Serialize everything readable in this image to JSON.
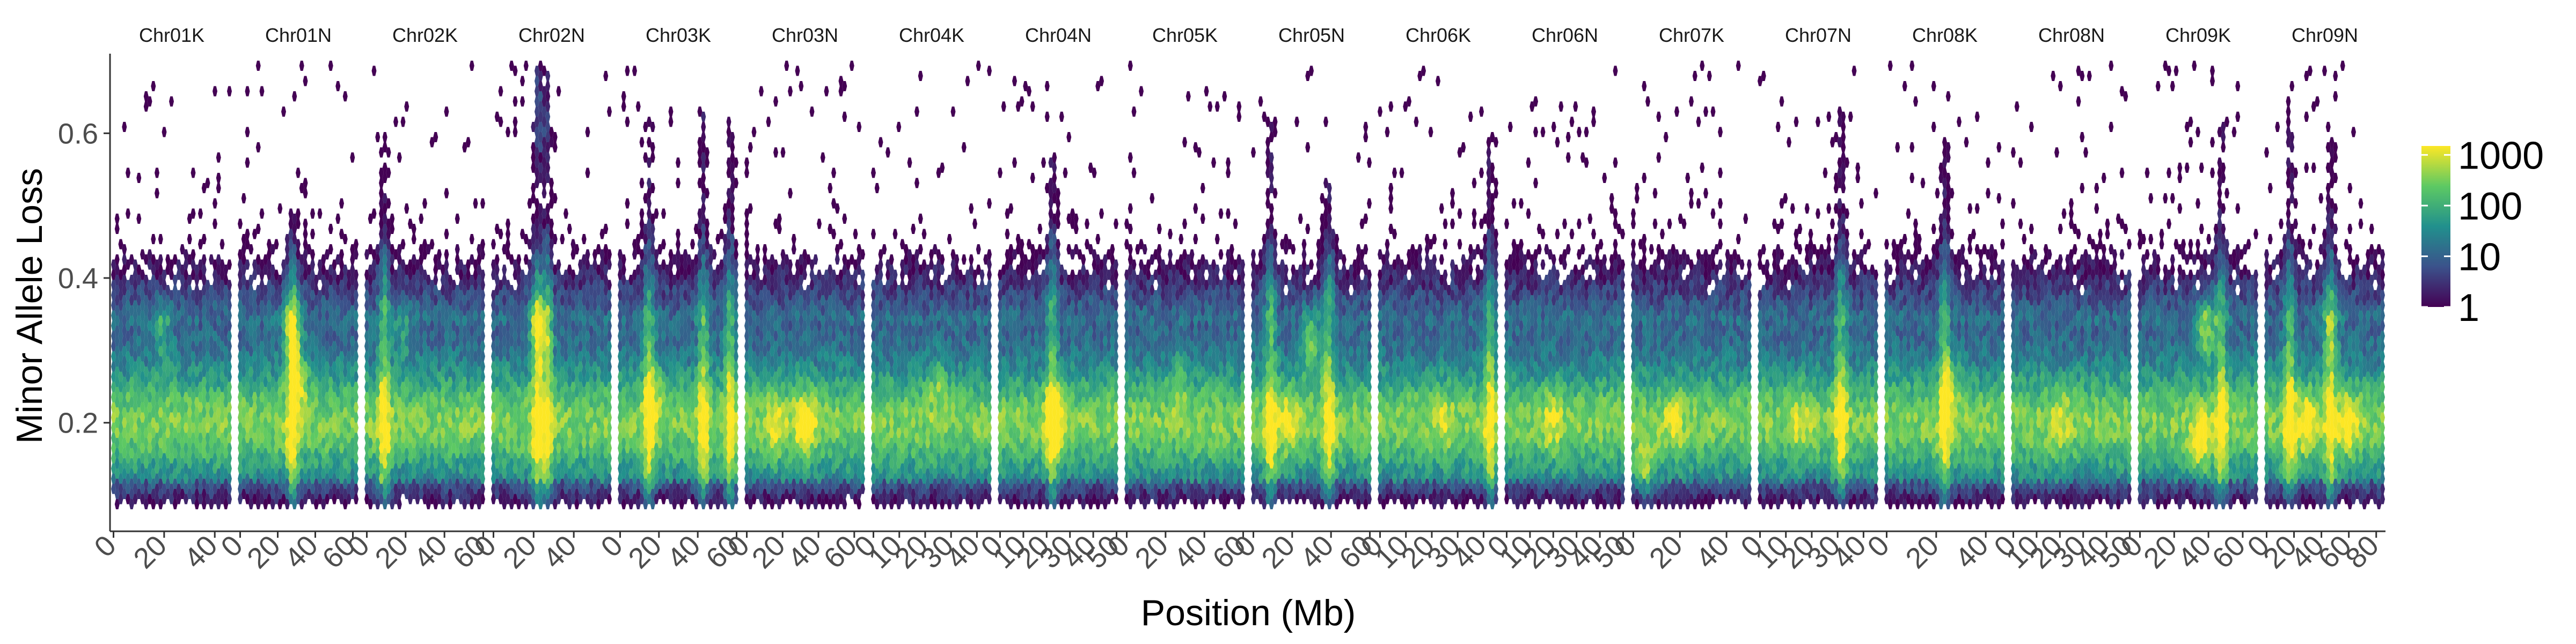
{
  "chart_data": {
    "type": "heatmap",
    "subtype": "faceted hexbin density",
    "title": "",
    "xlabel": "Position (Mb)",
    "ylabel": "Minor Allele Loss",
    "ylim": [
      0.05,
      0.71
    ],
    "y_ticks": [
      0.2,
      0.4,
      0.6
    ],
    "grid": false,
    "color_scale": {
      "name": "viridis",
      "scale": "log10",
      "min": 1,
      "max": 1500,
      "ticks": [
        "1",
        "10",
        "100",
        "1000"
      ],
      "stops": [
        "#440154",
        "#3b528b",
        "#21908d",
        "#5dc963",
        "#fde725"
      ]
    },
    "legend_position": "right",
    "facets": [
      {
        "name": "Chr01K",
        "xmax": 46,
        "x_ticks": [
          0,
          20,
          40
        ],
        "hot": [
          [
            0.42,
            0.33,
            1.4
          ]
        ],
        "tall": []
      },
      {
        "name": "Chr01N",
        "xmax": 62,
        "x_ticks": [
          0,
          20,
          40,
          60
        ],
        "hot": [
          [
            0.45,
            0.33,
            2.4
          ],
          [
            0.5,
            0.26,
            1.8
          ]
        ],
        "tall": [
          [
            0.45,
            0.5
          ]
        ]
      },
      {
        "name": "Chr02K",
        "xmax": 60,
        "x_ticks": [
          0,
          20,
          40,
          60
        ],
        "hot": [
          [
            0.3,
            0.33,
            1.2
          ]
        ],
        "tall": [
          [
            0.15,
            0.6
          ]
        ]
      },
      {
        "name": "Chr02N",
        "xmax": 58,
        "x_ticks": [
          0,
          20,
          40
        ],
        "hot": [
          [
            0.4,
            0.33,
            2.2
          ],
          [
            0.42,
            0.6,
            0.9
          ],
          [
            0.38,
            0.66,
            0.8
          ]
        ],
        "tall": [
          [
            0.42,
            0.7
          ],
          [
            0.38,
            0.69
          ],
          [
            0.46,
            0.68
          ]
        ]
      },
      {
        "name": "Chr03K",
        "xmax": 60,
        "x_ticks": [
          0,
          20,
          40,
          60
        ],
        "hot": [
          [
            0.3,
            0.25,
            1.0
          ]
        ],
        "tall": [
          [
            0.25,
            0.62
          ],
          [
            0.72,
            0.63
          ],
          [
            0.95,
            0.62
          ]
        ]
      },
      {
        "name": "Chr03N",
        "xmax": 65,
        "x_ticks": [
          0,
          20,
          40,
          60
        ],
        "hot": [
          [
            0.5,
            0.2,
            1.8
          ],
          [
            0.25,
            0.2,
            1.2
          ]
        ],
        "tall": []
      },
      {
        "name": "Chr04K",
        "xmax": 45,
        "x_ticks": [
          0,
          10,
          20,
          30,
          40
        ],
        "hot": [
          [
            0.55,
            0.26,
            1.0
          ]
        ],
        "tall": []
      },
      {
        "name": "Chr04N",
        "xmax": 50,
        "x_ticks": [
          0,
          10,
          20,
          30,
          40,
          50
        ],
        "hot": [
          [
            0.5,
            0.2,
            1.4
          ]
        ],
        "tall": [
          [
            0.45,
            0.58
          ]
        ]
      },
      {
        "name": "Chr05K",
        "xmax": 60,
        "x_ticks": [
          0,
          20,
          40,
          60
        ],
        "hot": [
          [
            0.45,
            0.26,
            1.0
          ]
        ],
        "tall": []
      },
      {
        "name": "Chr05N",
        "xmax": 60,
        "x_ticks": [
          0,
          20,
          40,
          60
        ],
        "hot": [
          [
            0.5,
            0.31,
            2.2
          ],
          [
            0.3,
            0.2,
            1.2
          ]
        ],
        "tall": [
          [
            0.15,
            0.62
          ],
          [
            0.65,
            0.55
          ]
        ]
      },
      {
        "name": "Chr06K",
        "xmax": 45,
        "x_ticks": [
          0,
          10,
          20,
          30,
          40
        ],
        "hot": [
          [
            0.55,
            0.2,
            0.9
          ]
        ],
        "tall": [
          [
            0.95,
            0.58
          ]
        ]
      },
      {
        "name": "Chr06N",
        "xmax": 50,
        "x_ticks": [
          0,
          10,
          20,
          30,
          40,
          50
        ],
        "hot": [
          [
            0.4,
            0.2,
            1.0
          ]
        ],
        "tall": []
      },
      {
        "name": "Chr07K",
        "xmax": 50,
        "x_ticks": [
          0,
          20,
          40
        ],
        "hot": [
          [
            0.1,
            0.13,
            1.6
          ],
          [
            0.35,
            0.2,
            1.0
          ]
        ],
        "tall": []
      },
      {
        "name": "Chr07N",
        "xmax": 45,
        "x_ticks": [
          0,
          10,
          20,
          30,
          40
        ],
        "hot": [
          [
            0.35,
            0.2,
            1.0
          ]
        ],
        "tall": [
          [
            0.7,
            0.63
          ]
        ]
      },
      {
        "name": "Chr08K",
        "xmax": 47,
        "x_ticks": [
          0,
          20,
          40
        ],
        "hot": [
          [
            0.55,
            0.26,
            1.2
          ]
        ],
        "tall": [
          [
            0.5,
            0.6
          ]
        ]
      },
      {
        "name": "Chr08N",
        "xmax": 50,
        "x_ticks": [
          0,
          10,
          20,
          30,
          40,
          50
        ],
        "hot": [
          [
            0.4,
            0.2,
            1.0
          ]
        ],
        "tall": []
      },
      {
        "name": "Chr09K",
        "xmax": 68,
        "x_ticks": [
          0,
          20,
          40,
          60
        ],
        "hot": [
          [
            0.57,
            0.33,
            2.6
          ],
          [
            0.52,
            0.17,
            1.8
          ]
        ],
        "tall": [
          [
            0.7,
            0.61
          ]
        ]
      },
      {
        "name": "Chr09N",
        "xmax": 85,
        "x_ticks": [
          0,
          20,
          40,
          60,
          80
        ],
        "hot": [
          [
            0.35,
            0.2,
            1.8
          ],
          [
            0.7,
            0.2,
            1.6
          ],
          [
            0.55,
            0.33,
            1.0
          ]
        ],
        "tall": [
          [
            0.2,
            0.62
          ],
          [
            0.55,
            0.6
          ]
        ]
      }
    ]
  }
}
